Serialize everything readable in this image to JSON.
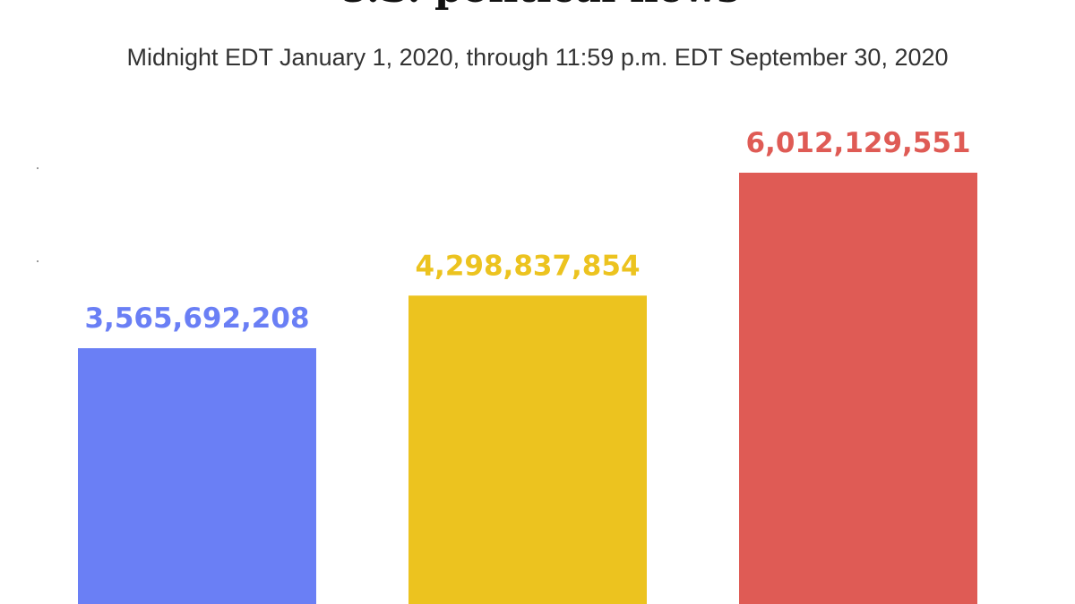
{
  "chart_data": {
    "type": "bar",
    "title": "U.S. political news",
    "subtitle": "Midnight EDT January 1, 2020, through 11:59 p.m. EDT September 30, 2020",
    "categories": [
      "",
      "",
      ""
    ],
    "values": [
      3565692208,
      4298837854,
      6012129551
    ],
    "value_labels": [
      "3,565,692,208",
      "4,298,837,854",
      "6,012,129,551"
    ],
    "colors": [
      "#6a7ff5",
      "#ecc31f",
      "#df5b55"
    ],
    "xlabel": "",
    "ylabel": "",
    "ylim": [
      0,
      7500000000
    ],
    "grid": false,
    "legend": "none"
  }
}
